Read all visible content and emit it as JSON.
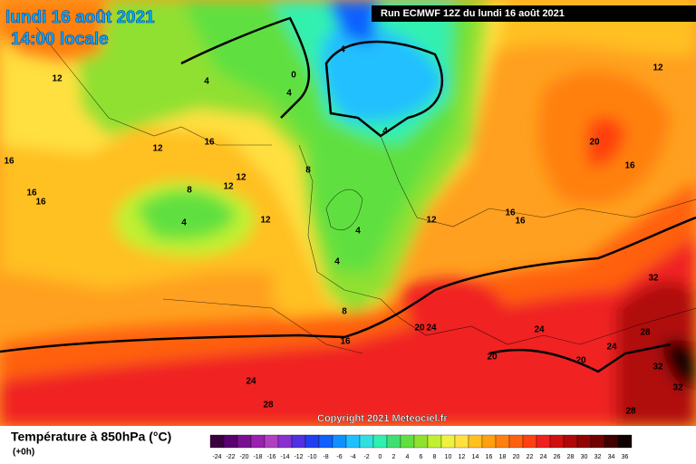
{
  "header": {
    "date": "lundi 16 août 2021",
    "time": "14:00 locale",
    "run": "Run ECMWF 12Z du lundi 16 août 2021"
  },
  "copyright": "Copyright 2021 Meteociel.fr",
  "contour_labels": [
    12,
    4,
    0,
    4,
    4,
    12,
    16,
    12,
    16,
    16,
    16,
    8,
    12,
    12,
    4,
    12,
    8,
    4,
    4,
    4,
    8,
    12,
    16,
    16,
    20,
    16,
    32,
    20,
    24,
    24,
    28,
    16,
    24,
    20,
    20,
    32,
    32,
    24,
    28,
    28
  ],
  "legend": {
    "title": "Température à 850hPa (°C)",
    "subtitle": "(+0h)",
    "ticks": [
      -24,
      -22,
      -20,
      -18,
      -16,
      -14,
      -12,
      -10,
      -8,
      -6,
      -4,
      -2,
      0,
      2,
      4,
      6,
      8,
      10,
      12,
      14,
      16,
      18,
      20,
      22,
      24,
      26,
      28,
      30,
      32,
      34,
      36
    ],
    "colors": [
      "#3a0040",
      "#5a0070",
      "#7a1090",
      "#9a20b0",
      "#b040c0",
      "#8a30d0",
      "#5030e0",
      "#2040f0",
      "#1060ff",
      "#1090ff",
      "#20c0ff",
      "#30e0e0",
      "#30f0b0",
      "#40e070",
      "#60e040",
      "#90e030",
      "#c0f030",
      "#f0f040",
      "#ffe040",
      "#ffc020",
      "#ffa010",
      "#ff8010",
      "#ff6010",
      "#ff4010",
      "#f02020",
      "#d01010",
      "#b00808",
      "#900404",
      "#700202",
      "#400000",
      "#100000"
    ]
  }
}
